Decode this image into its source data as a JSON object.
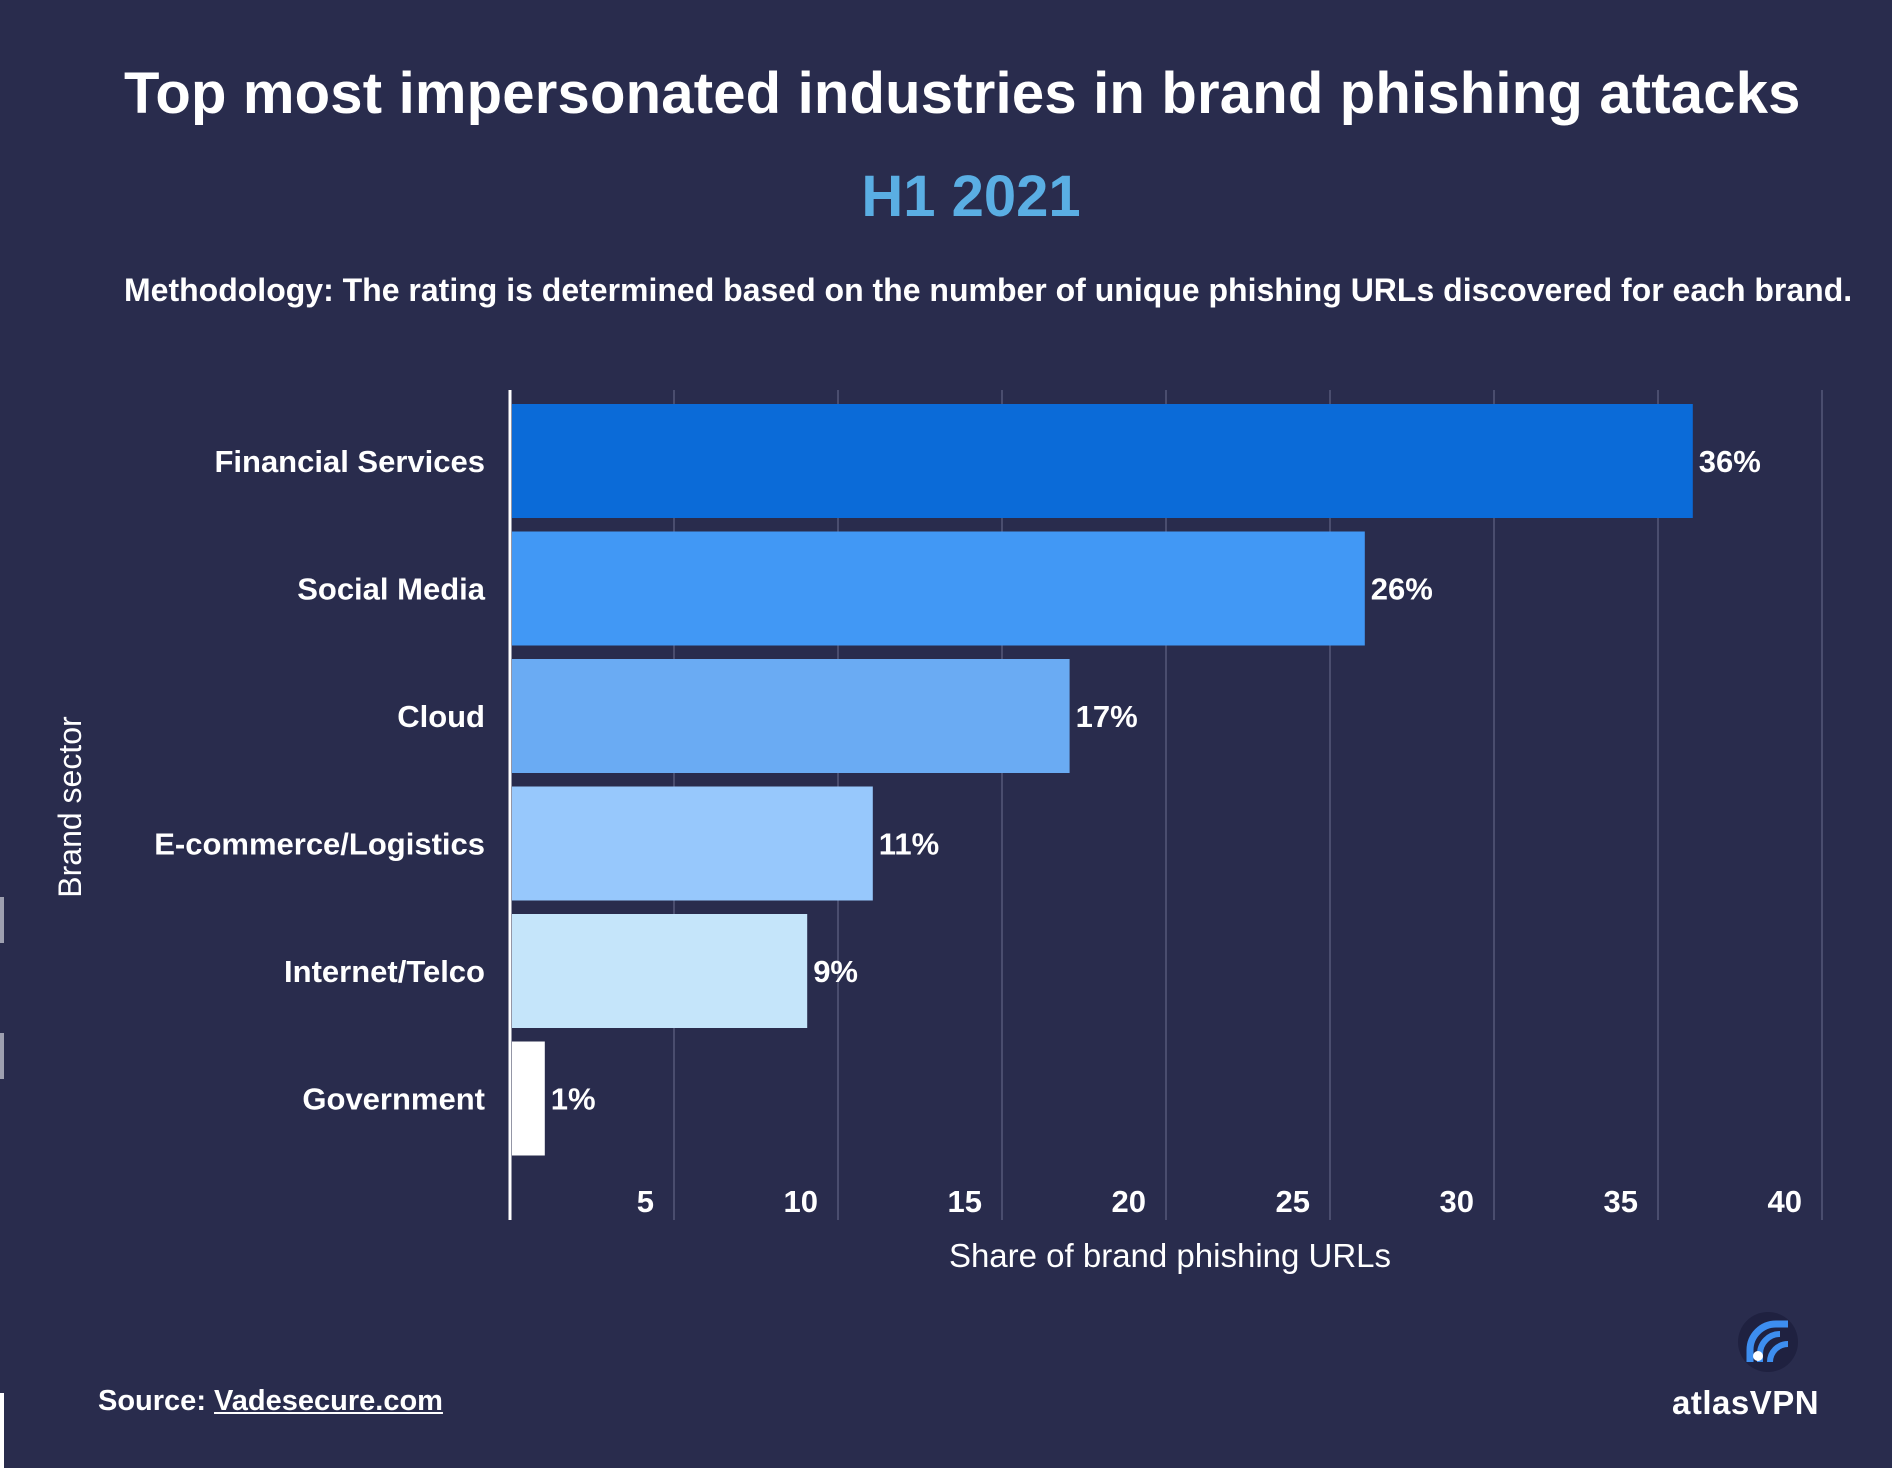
{
  "header": {
    "title": "Top most impersonated industries in brand phishing attacks",
    "subtitle": "H1 2021",
    "methodology_label": "Methodology:",
    "methodology_text": " The rating is determined based on the number of unique phishing URLs discovered for each brand."
  },
  "footer": {
    "source_label": "Source: ",
    "source_link": "Vadesecure.com",
    "brand_name": "atlasVPN"
  },
  "colors": {
    "background": "#292c4d",
    "gridline": "#4a4d6e",
    "subtitle": "#5aaee3"
  },
  "chart_data": {
    "type": "bar",
    "orientation": "horizontal",
    "title": "Top most impersonated industries in brand phishing attacks",
    "subtitle": "H1 2021",
    "xlabel": "Share of brand phishing URLs",
    "ylabel": "Brand sector",
    "xlim": [
      0,
      40
    ],
    "xticks": [
      5,
      10,
      15,
      20,
      25,
      30,
      35,
      40
    ],
    "grid": true,
    "categories": [
      "Financial Services",
      "Social Media",
      "Cloud",
      "E-commerce/Logistics",
      "Internet/Telco",
      "Government"
    ],
    "values": [
      36,
      26,
      17,
      11,
      9,
      1
    ],
    "data_labels": [
      "36%",
      "26%",
      "17%",
      "11%",
      "9%",
      "1%"
    ],
    "bar_colors": [
      "#0b6bd8",
      "#4198f5",
      "#6aabf3",
      "#97c8fc",
      "#c5e5fa",
      "#ffffff"
    ]
  }
}
